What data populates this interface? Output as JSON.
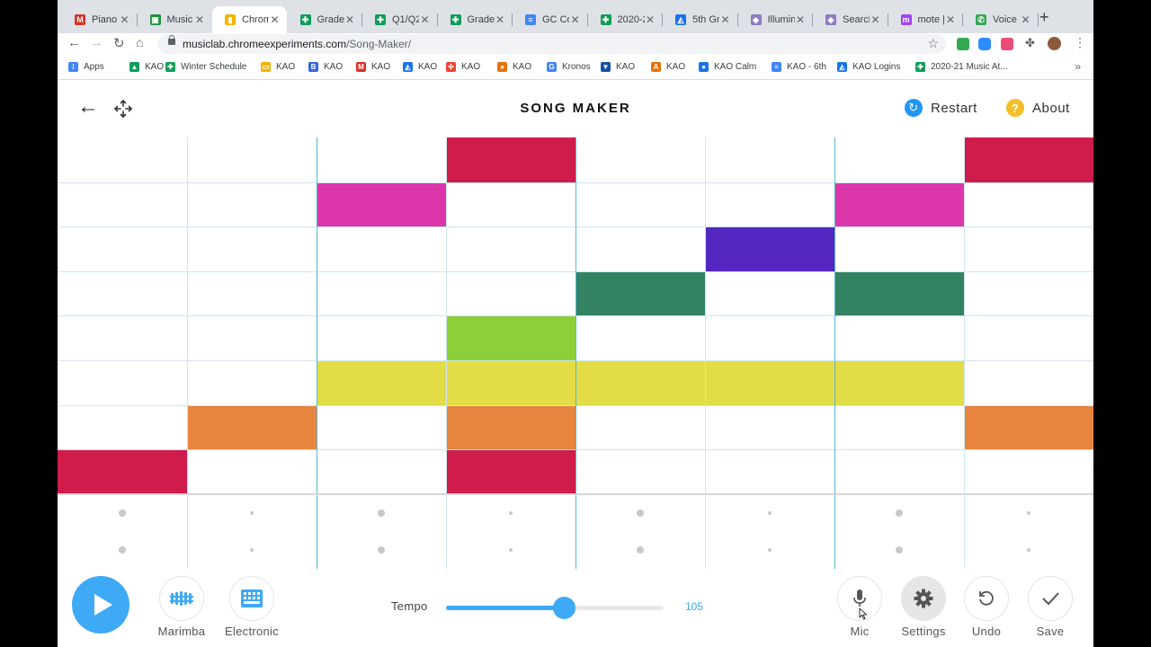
{
  "browser": {
    "tabs": [
      {
        "label": "Piano L",
        "icon": "gmail-icon",
        "color": "#d93025",
        "glyph": "M"
      },
      {
        "label": "Music L",
        "icon": "classroom-icon",
        "color": "#1e8e3e",
        "glyph": "▣"
      },
      {
        "label": "Chrom",
        "icon": "chrome-music-lab-icon",
        "color": "#f4b400",
        "glyph": "▮"
      },
      {
        "label": "Grades",
        "icon": "sheets-icon",
        "color": "#0f9d58",
        "glyph": "✚"
      },
      {
        "label": "Q1/Q2",
        "icon": "sheets-icon",
        "color": "#0f9d58",
        "glyph": "✚"
      },
      {
        "label": "Grades",
        "icon": "sheets-icon",
        "color": "#0f9d58",
        "glyph": "✚"
      },
      {
        "label": "GC Co",
        "icon": "docs-icon",
        "color": "#4285f4",
        "glyph": "≡"
      },
      {
        "label": "2020-2",
        "icon": "sheets-icon",
        "color": "#0f9d58",
        "glyph": "✚"
      },
      {
        "label": "5th Gr",
        "icon": "site-icon",
        "color": "#1a73e8",
        "glyph": "◭"
      },
      {
        "label": "Illumin",
        "icon": "illuminate-icon",
        "color": "#8e7cc3",
        "glyph": "◆"
      },
      {
        "label": "Search",
        "icon": "illuminate-icon",
        "color": "#8e7cc3",
        "glyph": "◆"
      },
      {
        "label": "mote |",
        "icon": "mote-icon",
        "color": "#a142f4",
        "glyph": "m"
      },
      {
        "label": "Voice -",
        "icon": "voice-icon",
        "color": "#34a853",
        "glyph": "✆"
      }
    ],
    "active_tab": 2,
    "url_host": "musiclab.chromeexperiments.com",
    "url_path": "/Song-Maker/",
    "bookmarks": [
      {
        "label": "Apps",
        "icon": "apps-icon",
        "color": "#4285f4",
        "glyph": "⁞"
      },
      {
        "label": "KAO",
        "icon": "drive-icon",
        "color": "#0f9d58",
        "glyph": "▲"
      },
      {
        "label": "Winter Schedule",
        "icon": "sheets-icon",
        "color": "#0f9d58",
        "glyph": "✚"
      },
      {
        "label": "KAO",
        "icon": "slides-icon",
        "color": "#f4b400",
        "glyph": "▭"
      },
      {
        "label": "KAO",
        "icon": "b-icon",
        "color": "#3367d6",
        "glyph": "B"
      },
      {
        "label": "KAO",
        "icon": "gmail-icon",
        "color": "#d93025",
        "glyph": "M"
      },
      {
        "label": "KAO",
        "icon": "site-icon",
        "color": "#1a73e8",
        "glyph": "◭"
      },
      {
        "label": "KAO",
        "icon": "pinwheel-icon",
        "color": "#ea4335",
        "glyph": "✣"
      },
      {
        "label": "KAO",
        "icon": "circle-icon",
        "color": "#e8710a",
        "glyph": "●"
      },
      {
        "label": "Kronos",
        "icon": "google-icon",
        "color": "#4285f4",
        "glyph": "G"
      },
      {
        "label": "KAO",
        "icon": "shield-icon",
        "color": "#174ea6",
        "glyph": "▼"
      },
      {
        "label": "KAO",
        "icon": "a-icon",
        "color": "#e8710a",
        "glyph": "A"
      },
      {
        "label": "KAO Calm",
        "icon": "calm-icon",
        "color": "#1a73e8",
        "glyph": "●"
      },
      {
        "label": "KAO - 6th",
        "icon": "docs-icon",
        "color": "#4285f4",
        "glyph": "≡"
      },
      {
        "label": "KAO Logins",
        "icon": "site-icon",
        "color": "#1a73e8",
        "glyph": "◭"
      },
      {
        "label": "2020-21 Music At...",
        "icon": "sheets-icon",
        "color": "#0f9d58",
        "glyph": "✚"
      }
    ],
    "bookmarks_more": "»"
  },
  "app": {
    "back_icon": "←",
    "title": "SONG MAKER",
    "restart_label": "Restart",
    "restart_glyph": "↻",
    "about_label": "About",
    "about_glyph": "?"
  },
  "grid": {
    "columns": 8,
    "melody_rows": 8,
    "rhythm_rows": 2,
    "beats_per_bar": 2,
    "notes": [
      {
        "col": 3,
        "row": 0,
        "color": "#d01c4a"
      },
      {
        "col": 7,
        "row": 0,
        "color": "#d01c4a"
      },
      {
        "col": 2,
        "row": 1,
        "color": "#db37aa"
      },
      {
        "col": 6,
        "row": 1,
        "color": "#db37aa"
      },
      {
        "col": 5,
        "row": 2,
        "color": "#5427c1"
      },
      {
        "col": 4,
        "row": 3,
        "color": "#338363"
      },
      {
        "col": 6,
        "row": 3,
        "color": "#338363"
      },
      {
        "col": 3,
        "row": 4,
        "color": "#8ccf39"
      },
      {
        "col": 2,
        "row": 5,
        "color": "#e2dc46"
      },
      {
        "col": 3,
        "row": 5,
        "color": "#e2dc46"
      },
      {
        "col": 4,
        "row": 5,
        "color": "#e2dc46"
      },
      {
        "col": 5,
        "row": 5,
        "color": "#e2dc46"
      },
      {
        "col": 6,
        "row": 5,
        "color": "#e2dc46"
      },
      {
        "col": 1,
        "row": 6,
        "color": "#e7843d"
      },
      {
        "col": 3,
        "row": 6,
        "color": "#e7843d"
      },
      {
        "col": 7,
        "row": 6,
        "color": "#e7843d"
      },
      {
        "col": 0,
        "row": 7,
        "color": "#d01c4a"
      },
      {
        "col": 3,
        "row": 7,
        "color": "#d01c4a"
      }
    ]
  },
  "controls": {
    "instrument_label": "Marimba",
    "drum_label": "Electronic",
    "tempo_label": "Tempo",
    "tempo_value": "105",
    "tempo_fraction": 0.54,
    "mic_label": "Mic",
    "settings_label": "Settings",
    "undo_label": "Undo",
    "save_label": "Save"
  },
  "colors": {
    "accent": "#3ea9f5",
    "bar_line": "#57b6d2",
    "grid_line": "#cfe6ee"
  }
}
